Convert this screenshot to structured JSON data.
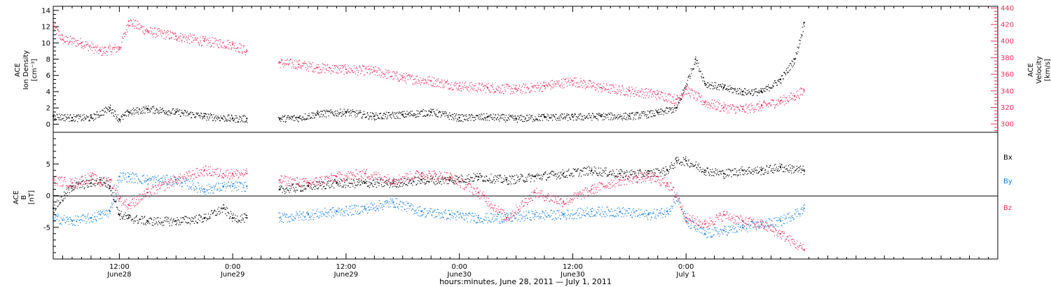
{
  "colors": {
    "black": "#000000",
    "velocity": "#e8325f",
    "bx": "#000000",
    "by": "#1a7fdc",
    "bz": "#e8325f"
  },
  "x_axis": {
    "label": "hours:minutes, June 28, 2011 — July  1, 2011",
    "tick_labels": [
      {
        "time": "12:00",
        "date": "June28"
      },
      {
        "time": "0:00",
        "date": "June29"
      },
      {
        "time": "12:00",
        "date": "June29"
      },
      {
        "time": "0:00",
        "date": "June30"
      },
      {
        "time": "12:00",
        "date": "June30"
      },
      {
        "time": "0:00",
        "date": "July 1"
      }
    ]
  },
  "top_panel": {
    "left_label_line1": "ACE",
    "left_label_line2": "Ion Density",
    "left_label_line3": "[cm⁻³]",
    "right_label_line1": "ACE",
    "right_label_line2": "Velocity",
    "right_label_line3": "[km/s]",
    "left_ticks": [
      "0",
      "2",
      "4",
      "6",
      "8",
      "10",
      "12",
      "14"
    ],
    "right_ticks": [
      "300",
      "320",
      "340",
      "360",
      "380",
      "400",
      "420",
      "440"
    ]
  },
  "bottom_panel": {
    "left_label_line1": "ACE",
    "left_label_line2": "B",
    "left_label_line3": "[nT]",
    "ticks": [
      "-5",
      "0",
      "5"
    ],
    "legend": [
      "Bx",
      "By",
      "Bz"
    ]
  },
  "chart_data": [
    {
      "type": "scatter",
      "title": "",
      "xlabel": "hours:minutes, June 28, 2011 — July  1, 2011",
      "x_unit": "hours from 2011-06-28 00:00 UT",
      "xlim": [
        5,
        105
      ],
      "ylabel": "ACE Ion Density [cm⁻³]",
      "ylim": [
        -1,
        14.5
      ],
      "y2label": "ACE Velocity [km/s]",
      "y2lim": [
        290,
        442
      ],
      "data_gap_hours": [
        25.5,
        28.8
      ],
      "series": [
        {
          "name": "Ion Density",
          "axis": "left",
          "x": [
            5,
            7,
            9,
            11,
            12,
            13,
            15,
            18,
            21,
            24,
            25.5,
            29,
            31,
            33,
            36,
            39,
            42,
            45,
            48,
            51,
            54,
            57,
            60,
            63,
            66,
            69,
            71,
            73,
            74,
            76,
            78,
            80,
            82,
            83.5,
            84.5
          ],
          "y": [
            1.0,
            0.8,
            0.8,
            2.0,
            0.6,
            1.5,
            1.9,
            1.5,
            1.0,
            0.7,
            0.7,
            0.7,
            0.8,
            1.3,
            1.5,
            1.0,
            1.2,
            1.5,
            0.8,
            0.9,
            0.7,
            0.9,
            0.9,
            1.0,
            1.0,
            1.4,
            2.0,
            8.0,
            5.0,
            4.5,
            4.0,
            4.0,
            5.5,
            8.0,
            12.5
          ]
        },
        {
          "name": "Velocity",
          "axis": "right",
          "x": [
            5,
            6,
            8,
            10,
            12,
            13,
            15,
            18,
            21,
            24,
            25.5,
            29,
            31,
            33,
            36,
            39,
            42,
            45,
            48,
            51,
            54,
            57,
            60,
            63,
            66,
            69,
            71,
            72,
            74,
            76,
            78,
            80,
            82,
            83.5,
            84.5
          ],
          "y": [
            418,
            402,
            398,
            388,
            392,
            424,
            412,
            406,
            400,
            396,
            388,
            374,
            372,
            368,
            366,
            364,
            356,
            352,
            346,
            344,
            342,
            346,
            352,
            344,
            340,
            336,
            330,
            342,
            326,
            320,
            318,
            322,
            328,
            334,
            341
          ]
        }
      ]
    },
    {
      "type": "scatter",
      "title": "",
      "xlabel": "hours:minutes, June 28, 2011 — July  1, 2011",
      "x_unit": "hours from 2011-06-28 00:00 UT",
      "xlim": [
        5,
        105
      ],
      "ylabel": "ACE B [nT]",
      "ylim": [
        -10,
        10
      ],
      "data_gap_hours": [
        25.5,
        28.8
      ],
      "series": [
        {
          "name": "Bx",
          "x": [
            5,
            7,
            9,
            10,
            11,
            12,
            13,
            15,
            18,
            21,
            23,
            24,
            25.5,
            29,
            32,
            35,
            38,
            41,
            44,
            47,
            50,
            53,
            56,
            59,
            62,
            65,
            68,
            70,
            71,
            72,
            74,
            76,
            78,
            80,
            82,
            84.5
          ],
          "y": [
            -2.0,
            1.5,
            2.0,
            2.5,
            1.5,
            -3.0,
            -3.5,
            -4.0,
            -4.0,
            -3.5,
            -2.0,
            -3.5,
            -3.5,
            1.0,
            1.5,
            2.0,
            2.0,
            2.0,
            2.5,
            2.5,
            3.0,
            2.5,
            3.0,
            3.5,
            4.0,
            3.5,
            3.5,
            4.0,
            5.5,
            5.5,
            4.0,
            3.5,
            4.0,
            4.0,
            4.5,
            4.0
          ]
        },
        {
          "name": "By",
          "x": [
            5,
            7,
            9,
            10,
            11,
            12,
            13,
            15,
            18,
            21,
            23,
            24,
            25.5,
            29,
            32,
            35,
            38,
            41,
            44,
            47,
            50,
            53,
            56,
            59,
            62,
            65,
            68,
            70,
            71,
            72,
            74,
            76,
            78,
            80,
            82,
            84.5
          ],
          "y": [
            -3.5,
            -4.0,
            -3.5,
            -3.0,
            -2.5,
            3.0,
            3.0,
            2.5,
            2.5,
            1.0,
            1.5,
            1.5,
            1.5,
            -3.5,
            -3.0,
            -2.5,
            -2.0,
            -1.0,
            -2.5,
            -3.0,
            -3.5,
            -3.5,
            -3.0,
            -3.0,
            -2.5,
            -2.5,
            -3.0,
            -2.5,
            0.0,
            -4.0,
            -6.0,
            -5.5,
            -5.0,
            -4.5,
            -4.0,
            -2.0
          ]
        },
        {
          "name": "Bz",
          "x": [
            5,
            7,
            9,
            10,
            11,
            12,
            13,
            15,
            18,
            21,
            23,
            24,
            25.5,
            29,
            32,
            35,
            38,
            41,
            44,
            47,
            50,
            53,
            56,
            59,
            62,
            65,
            68,
            70,
            71,
            72,
            74,
            76,
            78,
            80,
            82,
            84.5
          ],
          "y": [
            2.5,
            2.0,
            3.0,
            2.0,
            2.5,
            -0.5,
            -1.5,
            0.5,
            2.5,
            4.0,
            3.5,
            3.5,
            3.5,
            2.5,
            2.0,
            3.0,
            3.5,
            2.5,
            3.5,
            3.0,
            0.5,
            -3.5,
            0.5,
            -1.0,
            1.0,
            2.5,
            3.0,
            2.0,
            0.0,
            -3.5,
            -4.5,
            -3.0,
            -4.0,
            -4.5,
            -6.0,
            -8.5
          ]
        }
      ]
    }
  ]
}
